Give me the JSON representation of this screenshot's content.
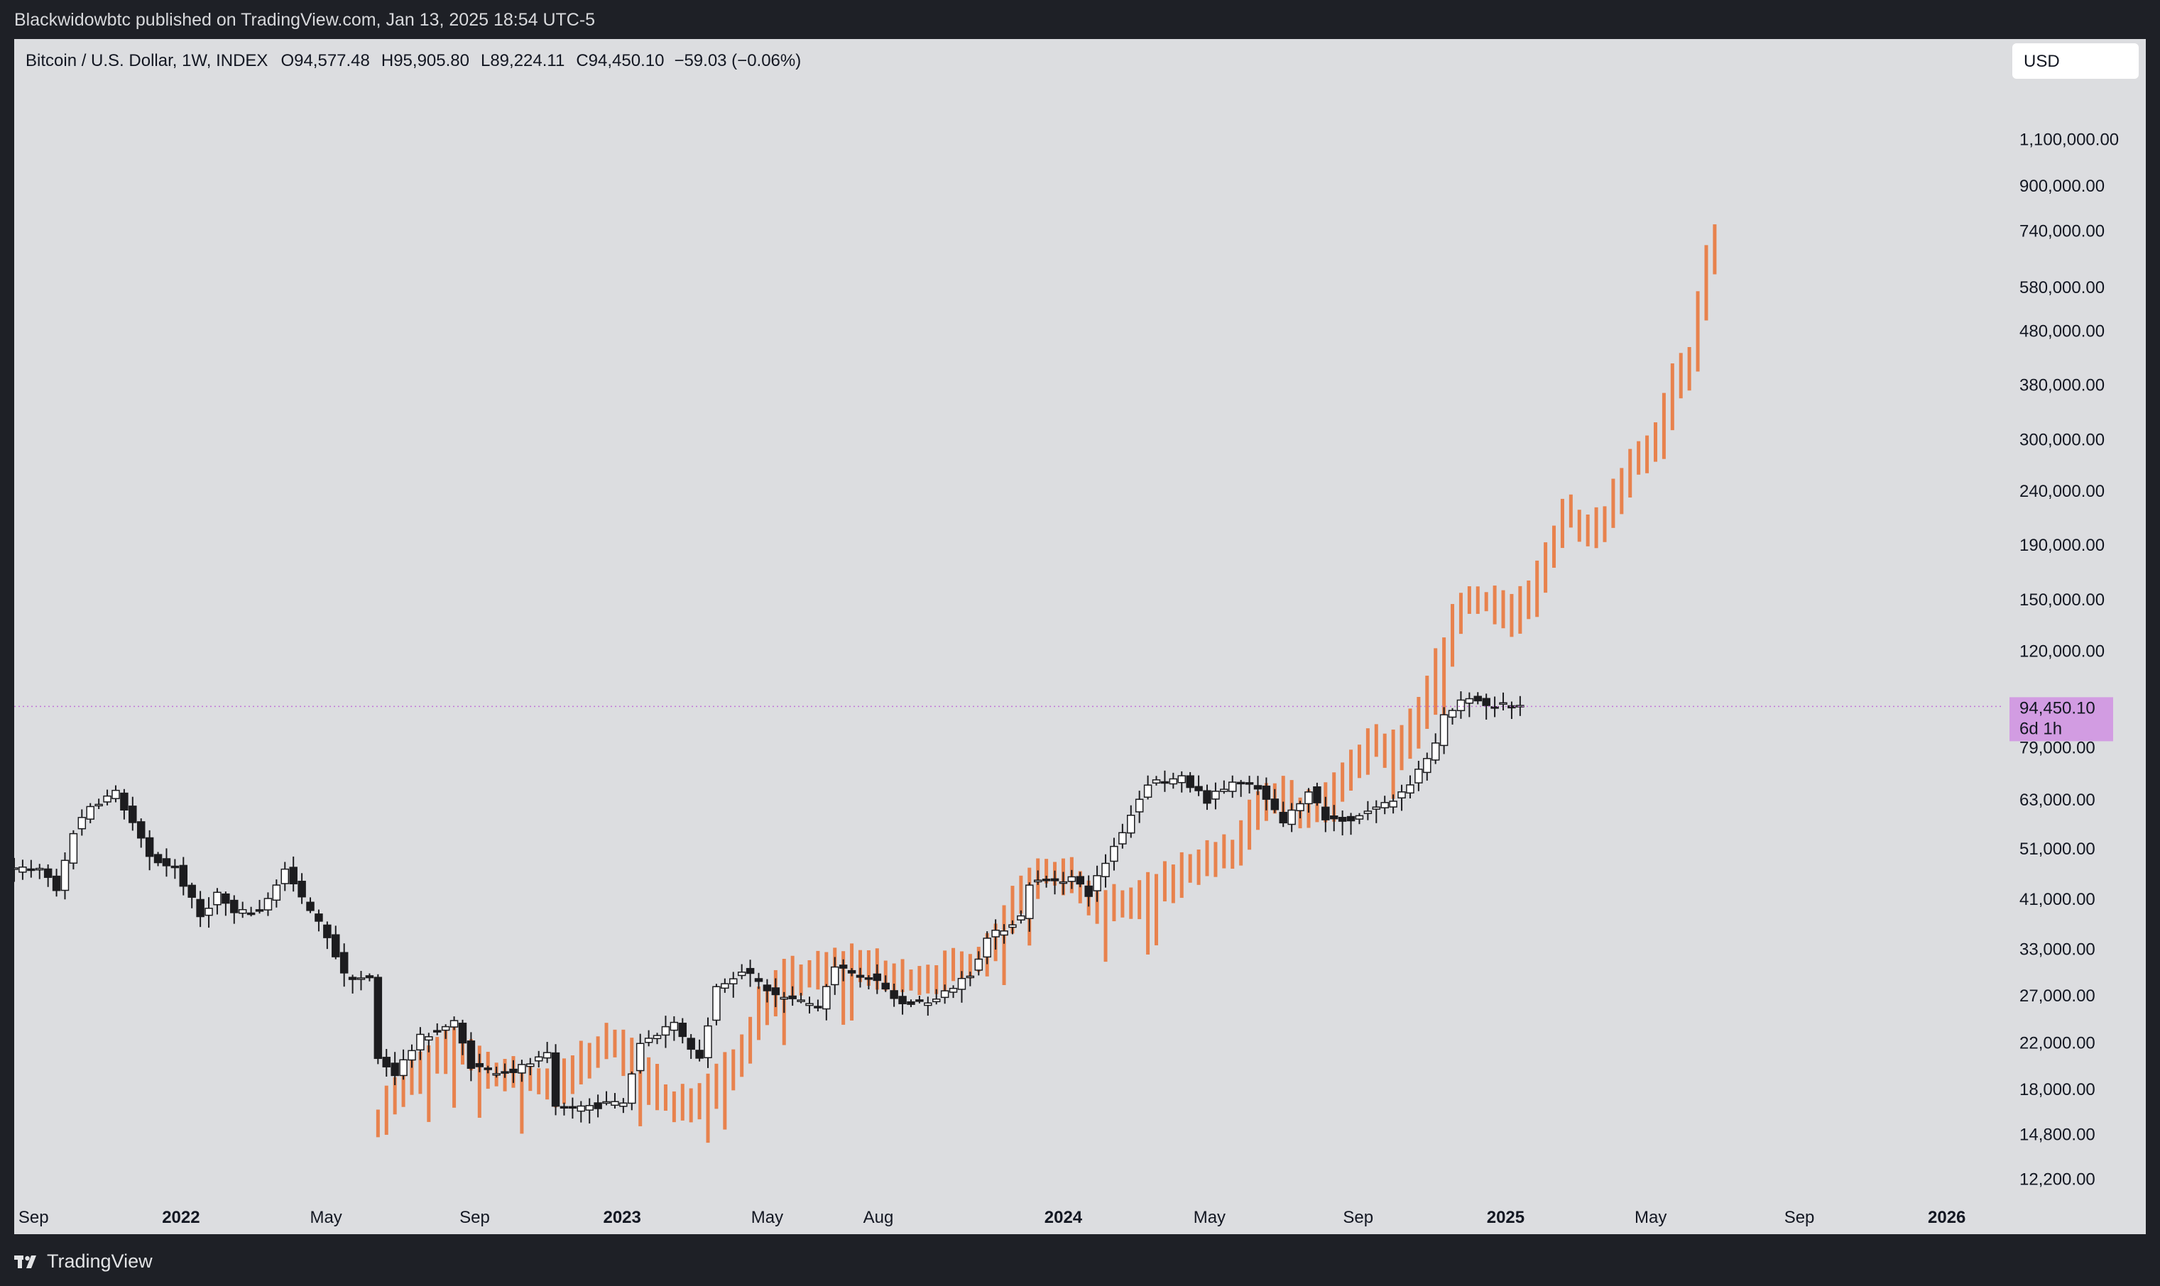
{
  "header": {
    "published": "Blackwidowbtc published on TradingView.com, Jan 13, 2025 18:54 UTC-5"
  },
  "footer": {
    "brand": "TradingView",
    "logo_icon": "tradingview-logo-icon"
  },
  "toolbar": {
    "currency": "USD"
  },
  "legend": {
    "symbol": "Bitcoin / U.S. Dollar, 1W, INDEX",
    "open": "O94,577.48",
    "high": "H95,905.80",
    "low": "L89,224.11",
    "close": "C94,450.10",
    "change": "−59.03 (−0.06%)"
  },
  "price_label": {
    "value": "94,450.10",
    "countdown": "6d 1h"
  },
  "colors": {
    "projection": "#e8824d",
    "candle_up": "#ffffff",
    "candle_down": "#1c1c1f",
    "wick": "#1c1c1f",
    "price_label_bg": "#d29ce2",
    "price_line": "#c074d8"
  },
  "chart_data": {
    "type": "candlestick",
    "scale": "log",
    "interval": "1W",
    "grid": false,
    "ylim": [
      11000,
      1250000
    ],
    "xlim": [
      "2021-08-16",
      "2026-02-16"
    ],
    "x_ticks": [
      {
        "label": "Sep",
        "date": "2021-09-01",
        "bold": false
      },
      {
        "label": "2022",
        "date": "2022-01-01",
        "bold": true
      },
      {
        "label": "May",
        "date": "2022-05-01",
        "bold": false
      },
      {
        "label": "Sep",
        "date": "2022-09-01",
        "bold": false
      },
      {
        "label": "2023",
        "date": "2023-01-01",
        "bold": true
      },
      {
        "label": "May",
        "date": "2023-05-01",
        "bold": false
      },
      {
        "label": "Aug",
        "date": "2023-08-01",
        "bold": false
      },
      {
        "label": "2024",
        "date": "2024-01-01",
        "bold": true
      },
      {
        "label": "May",
        "date": "2024-05-01",
        "bold": false
      },
      {
        "label": "Sep",
        "date": "2024-09-01",
        "bold": false
      },
      {
        "label": "2025",
        "date": "2025-01-01",
        "bold": true
      },
      {
        "label": "May",
        "date": "2025-05-01",
        "bold": false
      },
      {
        "label": "Sep",
        "date": "2025-09-01",
        "bold": false
      },
      {
        "label": "2026",
        "date": "2026-01-01",
        "bold": true
      }
    ],
    "y_ticks": [
      {
        "label": "1,100,000.00",
        "value": 1100000
      },
      {
        "label": "900,000.00",
        "value": 900000
      },
      {
        "label": "740,000.00",
        "value": 740000
      },
      {
        "label": "580,000.00",
        "value": 580000
      },
      {
        "label": "480,000.00",
        "value": 480000
      },
      {
        "label": "380,000.00",
        "value": 380000
      },
      {
        "label": "300,000.00",
        "value": 300000
      },
      {
        "label": "240,000.00",
        "value": 240000
      },
      {
        "label": "190,000.00",
        "value": 190000
      },
      {
        "label": "150,000.00",
        "value": 150000
      },
      {
        "label": "120,000.00",
        "value": 120000
      },
      {
        "label": "79,000.00",
        "value": 79000
      },
      {
        "label": "63,000.00",
        "value": 63000
      },
      {
        "label": "51,000.00",
        "value": 51000
      },
      {
        "label": "41,000.00",
        "value": 41000
      },
      {
        "label": "33,000.00",
        "value": 33000
      },
      {
        "label": "27,000.00",
        "value": 27000
      },
      {
        "label": "22,000.00",
        "value": 22000
      },
      {
        "label": "18,000.00",
        "value": 18000
      },
      {
        "label": "14,800.00",
        "value": 14800
      },
      {
        "label": "12,200.00",
        "value": 12200
      }
    ],
    "last_price": 94450.1,
    "anchors": [
      [
        "2021-08-16",
        46500
      ],
      [
        "2021-09-06",
        47000
      ],
      [
        "2021-09-20",
        42500
      ],
      [
        "2021-10-04",
        55000
      ],
      [
        "2021-10-18",
        61500
      ],
      [
        "2021-11-08",
        65000
      ],
      [
        "2021-11-22",
        57000
      ],
      [
        "2021-12-06",
        49000
      ],
      [
        "2021-12-27",
        47000
      ],
      [
        "2022-01-17",
        38000
      ],
      [
        "2022-01-31",
        42000
      ],
      [
        "2022-02-14",
        38500
      ],
      [
        "2022-03-07",
        39000
      ],
      [
        "2022-03-28",
        46500
      ],
      [
        "2022-04-11",
        41000
      ],
      [
        "2022-05-02",
        35000
      ],
      [
        "2022-05-16",
        29500
      ],
      [
        "2022-06-06",
        29000
      ],
      [
        "2022-06-13",
        20500
      ],
      [
        "2022-06-27",
        19300
      ],
      [
        "2022-07-18",
        22500
      ],
      [
        "2022-08-15",
        24000
      ],
      [
        "2022-08-29",
        20000
      ],
      [
        "2022-09-12",
        19500
      ],
      [
        "2022-10-03",
        19500
      ],
      [
        "2022-10-31",
        20800
      ],
      [
        "2022-11-07",
        16500
      ],
      [
        "2022-12-12",
        16800
      ],
      [
        "2023-01-02",
        17000
      ],
      [
        "2023-01-16",
        22000
      ],
      [
        "2023-02-13",
        24000
      ],
      [
        "2023-03-06",
        20500
      ],
      [
        "2023-03-20",
        28000
      ],
      [
        "2023-04-10",
        30200
      ],
      [
        "2023-05-08",
        27000
      ],
      [
        "2023-06-12",
        25800
      ],
      [
        "2023-06-26",
        30500
      ],
      [
        "2023-07-24",
        29300
      ],
      [
        "2023-08-21",
        26000
      ],
      [
        "2023-09-18",
        26500
      ],
      [
        "2023-10-16",
        29800
      ],
      [
        "2023-10-30",
        34500
      ],
      [
        "2023-11-27",
        38000
      ],
      [
        "2023-12-04",
        44000
      ],
      [
        "2024-01-08",
        45000
      ],
      [
        "2024-01-22",
        42000
      ],
      [
        "2024-02-12",
        51500
      ],
      [
        "2024-03-11",
        68000
      ],
      [
        "2024-04-08",
        69000
      ],
      [
        "2024-04-29",
        63000
      ],
      [
        "2024-05-20",
        68000
      ],
      [
        "2024-06-10",
        66000
      ],
      [
        "2024-07-01",
        57000
      ],
      [
        "2024-07-22",
        66000
      ],
      [
        "2024-08-05",
        58000
      ],
      [
        "2024-08-26",
        58000
      ],
      [
        "2024-09-09",
        60000
      ],
      [
        "2024-09-30",
        63000
      ],
      [
        "2024-10-14",
        68000
      ],
      [
        "2024-11-04",
        80000
      ],
      [
        "2024-11-11",
        90000
      ],
      [
        "2024-12-02",
        99000
      ],
      [
        "2024-12-16",
        95000
      ],
      [
        "2025-01-13",
        94450
      ]
    ],
    "projection_anchors": [
      [
        "2022-06-13",
        16000
      ],
      [
        "2022-06-20",
        17500
      ],
      [
        "2022-08-15",
        22000
      ],
      [
        "2022-09-05",
        19800
      ],
      [
        "2022-09-26",
        19000
      ],
      [
        "2022-10-24",
        18700
      ],
      [
        "2022-11-07",
        18200
      ],
      [
        "2022-12-05",
        21000
      ],
      [
        "2022-12-26",
        22500
      ],
      [
        "2023-01-09",
        19500
      ],
      [
        "2023-02-13",
        16800
      ],
      [
        "2023-03-06",
        17500
      ],
      [
        "2023-04-03",
        20000
      ],
      [
        "2023-04-24",
        26000
      ],
      [
        "2023-05-15",
        29000
      ],
      [
        "2023-06-12",
        30000
      ],
      [
        "2023-07-10",
        31500
      ],
      [
        "2023-08-07",
        29000
      ],
      [
        "2023-09-11",
        29500
      ],
      [
        "2023-10-09",
        30500
      ],
      [
        "2023-10-30",
        33000
      ],
      [
        "2023-11-20",
        41000
      ],
      [
        "2023-12-11",
        47000
      ],
      [
        "2024-01-08",
        44000
      ],
      [
        "2024-01-22",
        40000
      ],
      [
        "2024-02-26",
        40500
      ],
      [
        "2024-03-25",
        44000
      ],
      [
        "2024-04-22",
        49000
      ],
      [
        "2024-05-20",
        50000
      ],
      [
        "2024-06-03",
        58000
      ],
      [
        "2024-06-24",
        64000
      ],
      [
        "2024-07-15",
        60000
      ],
      [
        "2024-08-05",
        62000
      ],
      [
        "2024-08-26",
        73000
      ],
      [
        "2024-09-09",
        80000
      ],
      [
        "2024-09-30",
        78000
      ],
      [
        "2024-10-21",
        90000
      ],
      [
        "2024-11-11",
        123000
      ],
      [
        "2024-11-25",
        148000
      ],
      [
        "2024-12-16",
        150000
      ],
      [
        "2025-01-06",
        140000
      ],
      [
        "2025-01-20",
        150000
      ],
      [
        "2025-02-03",
        180000
      ],
      [
        "2025-02-17",
        220000
      ],
      [
        "2025-03-10",
        205000
      ],
      [
        "2025-03-24",
        218000
      ],
      [
        "2025-04-14",
        275000
      ],
      [
        "2025-05-05",
        300000
      ],
      [
        "2025-05-19",
        380000
      ],
      [
        "2025-06-02",
        430000
      ],
      [
        "2025-06-16",
        640000
      ],
      [
        "2025-06-23",
        730000
      ]
    ]
  }
}
